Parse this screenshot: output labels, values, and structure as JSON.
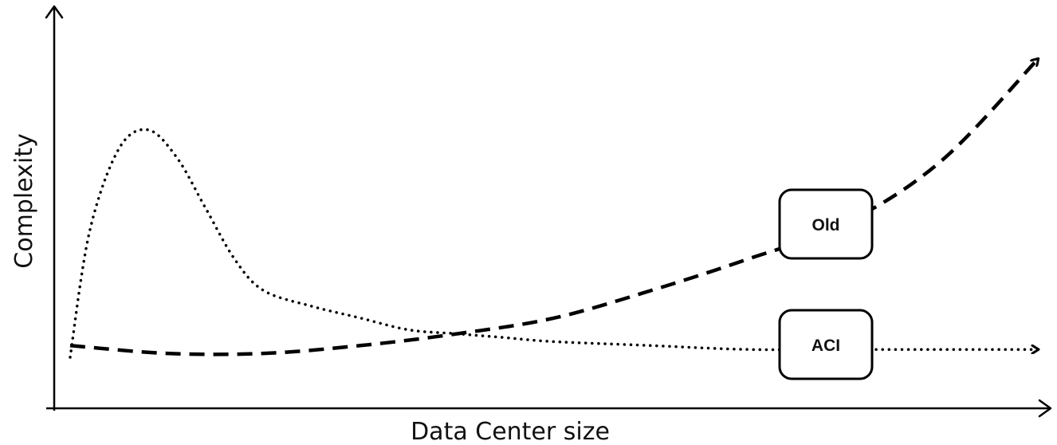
{
  "chart_data": {
    "type": "line",
    "title": "",
    "xlabel": "Data Center size",
    "ylabel": "Complexity",
    "xlim": [
      0,
      100
    ],
    "ylim": [
      0,
      100
    ],
    "grid": false,
    "legend": "none",
    "series": [
      {
        "name": "Old",
        "line_style": "dashed",
        "color": "#000000",
        "x": [
          0,
          10,
          20,
          30,
          40,
          50,
          60,
          70,
          80,
          90,
          100
        ],
        "y": [
          16,
          14,
          14,
          16,
          19,
          23,
          30,
          38,
          47,
          63,
          89
        ]
      },
      {
        "name": "ACI",
        "line_style": "dotted",
        "color": "#000000",
        "x": [
          0,
          2,
          5,
          8,
          11,
          14,
          17,
          20,
          25,
          30,
          35,
          40,
          45,
          50,
          60,
          70,
          80,
          90,
          100
        ],
        "y": [
          13,
          45,
          66,
          71,
          64,
          51,
          38,
          30,
          26,
          23,
          20,
          19,
          18,
          17,
          16,
          15,
          15,
          15,
          15
        ]
      }
    ]
  }
}
